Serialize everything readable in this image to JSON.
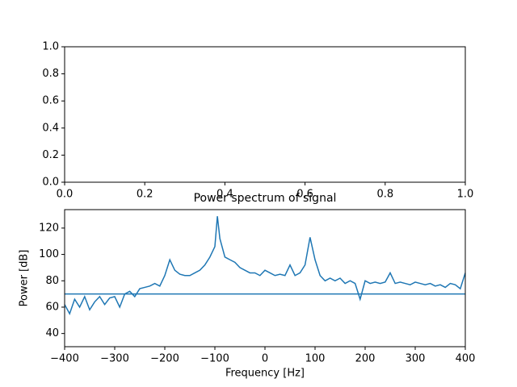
{
  "chart_data": [
    {
      "type": "line",
      "xlim": [
        0,
        1
      ],
      "ylim": [
        0,
        1
      ],
      "xticks": [
        {
          "value": 0,
          "label": "0.0"
        },
        {
          "value": 0.2,
          "label": "0.2"
        },
        {
          "value": 0.4,
          "label": "0.4"
        },
        {
          "value": 0.6,
          "label": "0.6"
        },
        {
          "value": 0.8,
          "label": "0.8"
        },
        {
          "value": 1,
          "label": "1.0"
        }
      ],
      "yticks": [
        {
          "value": 0,
          "label": "0.0"
        },
        {
          "value": 0.2,
          "label": "0.2"
        },
        {
          "value": 0.4,
          "label": "0.4"
        },
        {
          "value": 0.6,
          "label": "0.6"
        },
        {
          "value": 0.8,
          "label": "0.8"
        },
        {
          "value": 1,
          "label": "1.0"
        }
      ],
      "series": []
    },
    {
      "type": "line",
      "title": "Power spectrum of signal",
      "x_label": "Frequency [Hz]",
      "y_label": "Power [dB]",
      "xlim": [
        -400,
        400
      ],
      "ylim": [
        30,
        134
      ],
      "xticks": [
        {
          "value": -400,
          "label": "−400"
        },
        {
          "value": -300,
          "label": "−300"
        },
        {
          "value": -200,
          "label": "−200"
        },
        {
          "value": -100,
          "label": "−100"
        },
        0,
        100,
        200,
        300,
        400
      ],
      "yticks": [
        40,
        60,
        80,
        100,
        120
      ],
      "series": [
        {
          "color": "#1f77b4",
          "x": [
            -400,
            -390,
            -380,
            -370,
            -360,
            -350,
            -340,
            -330,
            -320,
            -310,
            -300,
            -290,
            -280,
            -270,
            -260,
            -250,
            -240,
            -230,
            -220,
            -210,
            -200,
            -190,
            -180,
            -170,
            -160,
            -150,
            -140,
            -130,
            -120,
            -110,
            -100,
            -95,
            -90,
            -80,
            -70,
            -60,
            -50,
            -40,
            -30,
            -20,
            -10,
            0,
            10,
            20,
            30,
            40,
            50,
            60,
            70,
            80,
            90,
            100,
            110,
            120,
            130,
            140,
            150,
            160,
            170,
            180,
            190,
            200,
            210,
            220,
            230,
            240,
            250,
            260,
            270,
            280,
            290,
            300,
            310,
            320,
            330,
            340,
            350,
            360,
            370,
            380,
            390,
            400
          ],
          "values": [
            62,
            55,
            66,
            60,
            68,
            58,
            64,
            68,
            62,
            67,
            68,
            60,
            70,
            72,
            68,
            74,
            75,
            76,
            78,
            76,
            84,
            96,
            88,
            85,
            84,
            84,
            86,
            88,
            92,
            98,
            106,
            129,
            112,
            98,
            96,
            94,
            90,
            88,
            86,
            86,
            84,
            88,
            86,
            84,
            85,
            84,
            92,
            84,
            86,
            92,
            113,
            96,
            84,
            80,
            82,
            80,
            82,
            78,
            80,
            78,
            66,
            80,
            78,
            79,
            78,
            79,
            86,
            78,
            79,
            78,
            77,
            79,
            78,
            77,
            78,
            76,
            77,
            75,
            78,
            77,
            74,
            86
          ]
        },
        {
          "color": "#1f77b4",
          "x": [
            -400,
            400
          ],
          "values": [
            70,
            70
          ]
        }
      ]
    }
  ]
}
